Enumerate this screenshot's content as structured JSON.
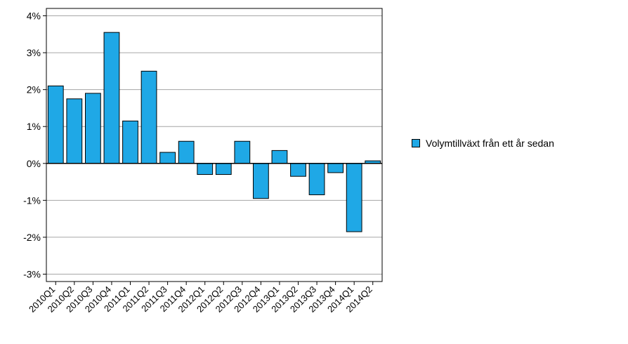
{
  "chart_data": {
    "type": "bar",
    "categories": [
      "2010Q1",
      "2010Q2",
      "2010Q3",
      "2010Q4",
      "2011Q1",
      "2011Q2",
      "2011Q3",
      "2011Q4",
      "2012Q1",
      "2012Q2",
      "2012Q3",
      "2012Q4",
      "2013Q1",
      "2013Q2",
      "2013Q3",
      "2013Q4",
      "2014Q1",
      "2014Q2"
    ],
    "series": [
      {
        "name": "Volymtillväxt från ett år sedan",
        "color": "#1fa8e6",
        "values": [
          2.1,
          1.75,
          1.9,
          3.55,
          1.15,
          2.5,
          0.3,
          0.6,
          -0.3,
          -0.3,
          0.6,
          -0.95,
          0.35,
          -0.35,
          -0.85,
          -0.25,
          -1.85,
          0.07
        ]
      }
    ],
    "ylim": [
      -3.2,
      4.2
    ],
    "yticks": [
      -3,
      -2,
      -1,
      0,
      1,
      2,
      3,
      4
    ],
    "ytick_labels": [
      "-3%",
      "-2%",
      "-1%",
      "0%",
      "1%",
      "2%",
      "3%",
      "4%"
    ],
    "grid": true,
    "legend_position": "right",
    "xlabel": "",
    "ylabel": "",
    "title": ""
  }
}
